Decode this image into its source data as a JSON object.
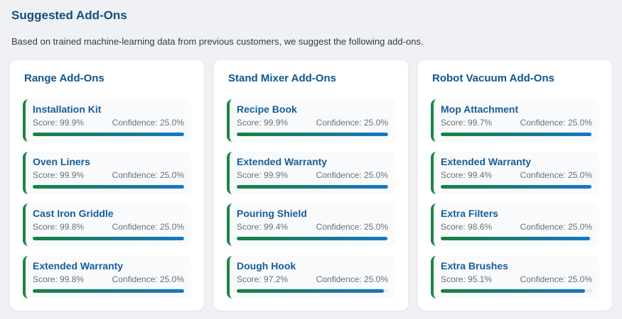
{
  "page": {
    "title": "Suggested Add-Ons",
    "subtitle": "Based on trained machine-learning data from previous customers, we suggest the following add-ons."
  },
  "colors": {
    "page_background": "#eff1f4",
    "heading_blue": "#134e7e",
    "card_title_blue": "#10568d",
    "item_name_blue": "#175d99",
    "accent_green": "#1d8545",
    "bar_gradient_start": "#17813f",
    "bar_gradient_end": "#1677c5",
    "bar_track": "#e9ecef"
  },
  "cards": [
    {
      "title": "Range Add-Ons",
      "items": [
        {
          "name": "Installation Kit",
          "score": 99.9,
          "score_label": "Score: 99.9%",
          "confidence_label": "Confidence: 25.0%"
        },
        {
          "name": "Oven Liners",
          "score": 99.9,
          "score_label": "Score: 99.9%",
          "confidence_label": "Confidence: 25.0%"
        },
        {
          "name": "Cast Iron Griddle",
          "score": 99.8,
          "score_label": "Score: 99.8%",
          "confidence_label": "Confidence: 25.0%"
        },
        {
          "name": "Extended Warranty",
          "score": 99.8,
          "score_label": "Score: 99.8%",
          "confidence_label": "Confidence: 25.0%"
        }
      ]
    },
    {
      "title": "Stand Mixer Add-Ons",
      "items": [
        {
          "name": "Recipe Book",
          "score": 99.9,
          "score_label": "Score: 99.9%",
          "confidence_label": "Confidence: 25.0%"
        },
        {
          "name": "Extended Warranty",
          "score": 99.9,
          "score_label": "Score: 99.9%",
          "confidence_label": "Confidence: 25.0%"
        },
        {
          "name": "Pouring Shield",
          "score": 99.4,
          "score_label": "Score: 99.4%",
          "confidence_label": "Confidence: 25.0%"
        },
        {
          "name": "Dough Hook",
          "score": 97.2,
          "score_label": "Score: 97.2%",
          "confidence_label": "Confidence: 25.0%"
        }
      ]
    },
    {
      "title": "Robot Vacuum Add-Ons",
      "items": [
        {
          "name": "Mop Attachment",
          "score": 99.7,
          "score_label": "Score: 99.7%",
          "confidence_label": "Confidence: 25.0%"
        },
        {
          "name": "Extended Warranty",
          "score": 99.4,
          "score_label": "Score: 99.4%",
          "confidence_label": "Confidence: 25.0%"
        },
        {
          "name": "Extra Filters",
          "score": 98.6,
          "score_label": "Score: 98.6%",
          "confidence_label": "Confidence: 25.0%"
        },
        {
          "name": "Extra Brushes",
          "score": 95.1,
          "score_label": "Score: 95.1%",
          "confidence_label": "Confidence: 25.0%"
        }
      ]
    }
  ]
}
